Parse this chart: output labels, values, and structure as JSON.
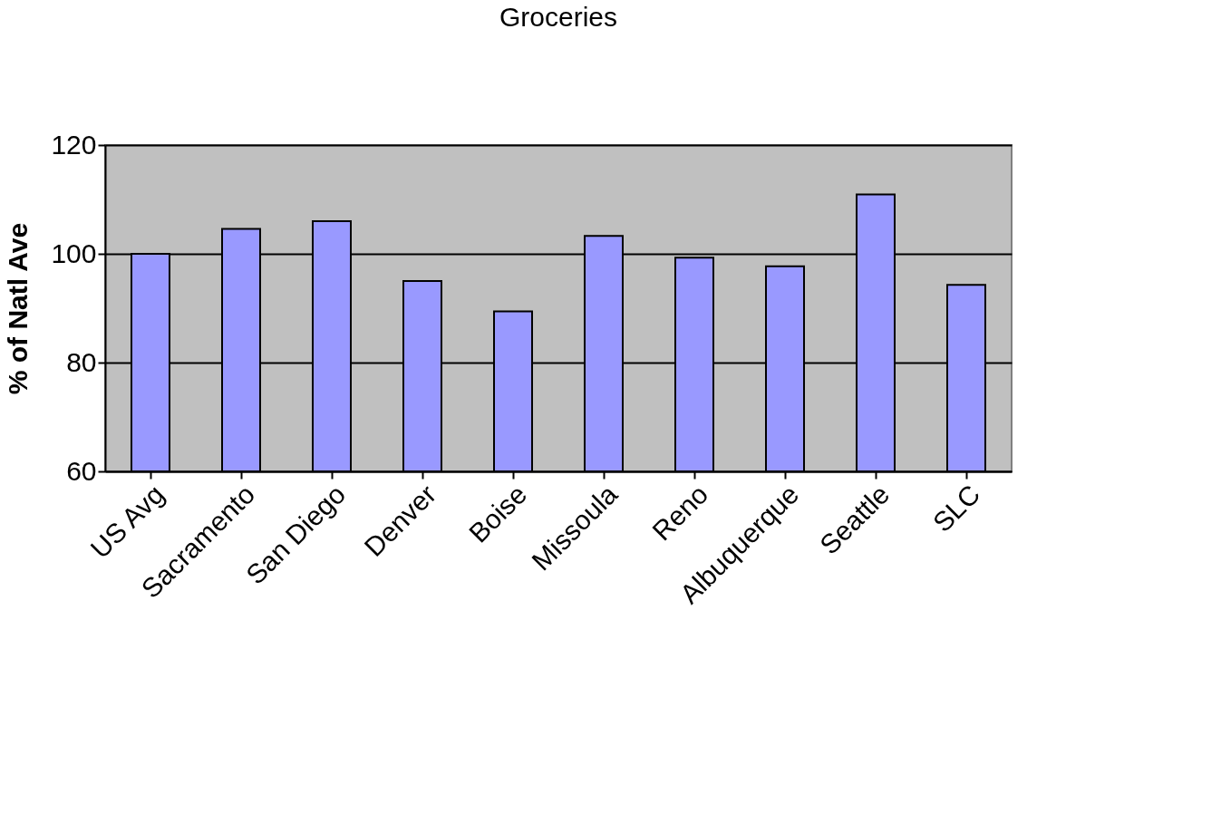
{
  "chart_data": {
    "type": "bar",
    "title": "Groceries",
    "ylabel": "% of Natl Ave",
    "categories": [
      "US Avg",
      "Sacramento",
      "San Diego",
      "Denver",
      "Boise",
      "Missoula",
      "Reno",
      "Albuquerque",
      "Seattle",
      "SLC"
    ],
    "values": [
      100,
      104.6,
      106,
      95,
      89.4,
      103.3,
      99.3,
      97.7,
      110.9,
      94.3
    ],
    "color": "#9999ff",
    "ylim": [
      60,
      120
    ],
    "yticks": [
      60,
      80,
      100,
      120
    ],
    "grid": "y"
  }
}
